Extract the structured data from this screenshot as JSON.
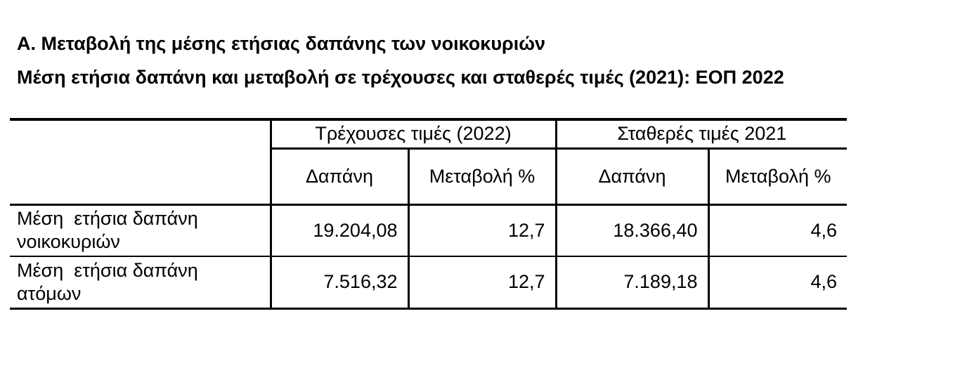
{
  "titles": {
    "section": "Α. Μεταβολή της μέσης ετήσιας δαπάνης των νοικοκυριών",
    "table": "Μέση ετήσια δαπάνη και μεταβολή σε τρέχουσες και σταθερές τιμές (2021): ΕΟΠ 2022"
  },
  "table": {
    "column_groups": [
      {
        "label": "Τρέχουσες τιμές (2022)"
      },
      {
        "label": "Σταθερές τιμές 2021"
      }
    ],
    "subheaders": [
      "Δαπάνη",
      "Μεταβολή %",
      "Δαπάνη",
      "Μεταβολή %"
    ],
    "rows": [
      {
        "label": "Μέση  ετήσια δαπάνη\nνοικοκυριών",
        "values": [
          "19.204,08",
          "12,7",
          "18.366,40",
          "4,6"
        ]
      },
      {
        "label": "Μέση  ετήσια δαπάνη\nατόμων",
        "values": [
          "7.516,32",
          "12,7",
          "7.189,18",
          "4,6"
        ]
      }
    ]
  },
  "colors": {
    "text": "#000000",
    "border": "#000000",
    "background": "#ffffff"
  }
}
